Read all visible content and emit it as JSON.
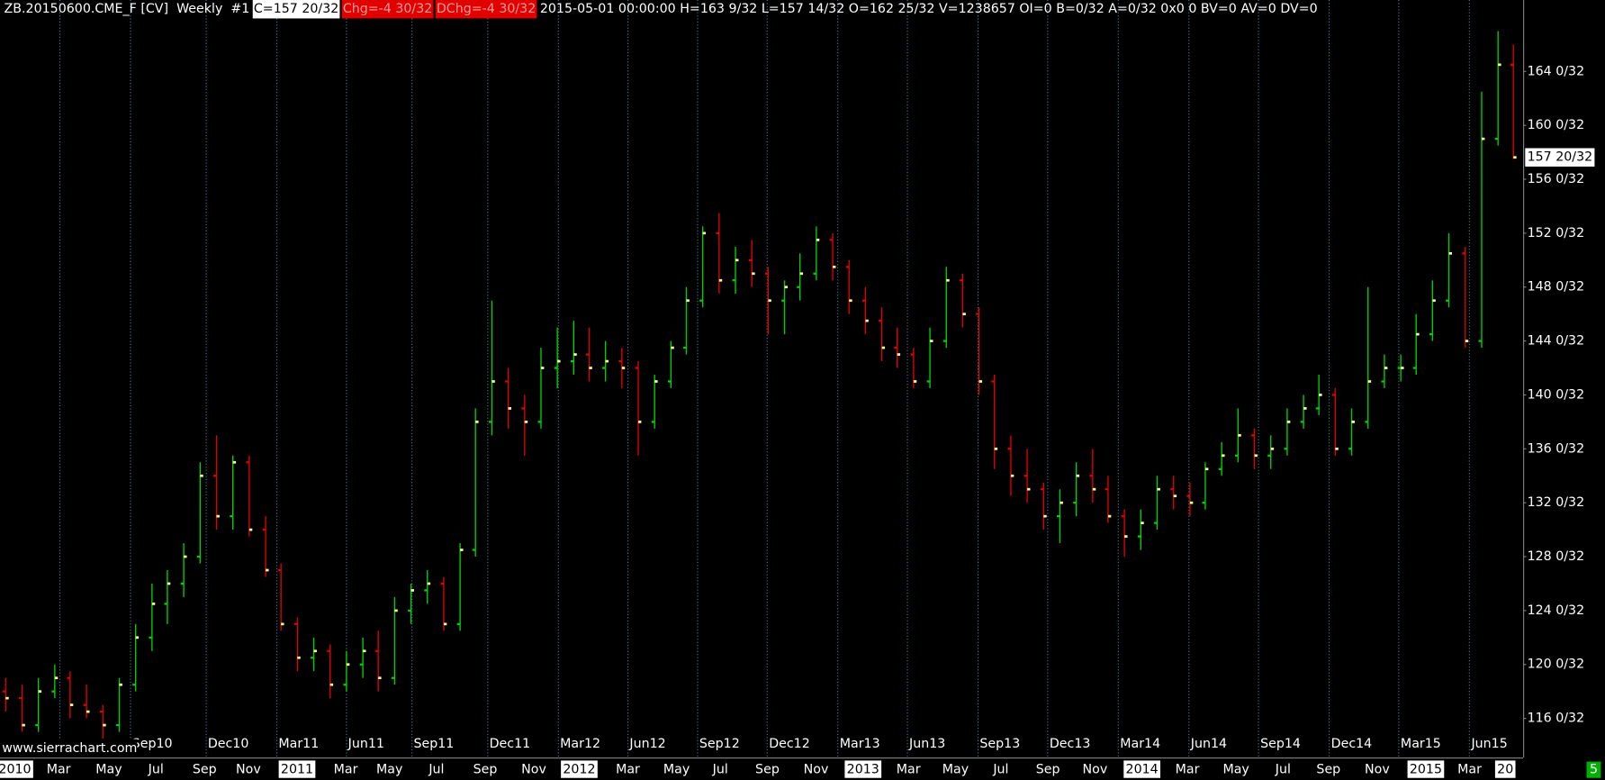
{
  "header": {
    "symbol": "ZB.20150600.CME_F [CV]  Weekly  #1",
    "close": "C=157 20/32",
    "change": "Chg=-4 30/32",
    "dchange": "DChg=-4 30/32",
    "details": "2015-05-01 00:00:00 H=163 9/32 L=157 14/32 O=162 25/32 V=1238657 OI=0 B=0/32 A=0/32 0x0 0 BV=0 AV=0 DV=0"
  },
  "watermark": "www.sierrachart.com",
  "corner_badge": "5",
  "chart_data": {
    "type": "ohlc",
    "xlim": [
      0,
      93.6
    ],
    "ylim": [
      113.1,
      169.3
    ],
    "yticks": [
      {
        "value": 116,
        "label": "116 0/32"
      },
      {
        "value": 120,
        "label": "120 0/32"
      },
      {
        "value": 124,
        "label": "124 0/32"
      },
      {
        "value": 128,
        "label": "128 0/32"
      },
      {
        "value": 132,
        "label": "132 0/32"
      },
      {
        "value": 136,
        "label": "136 0/32"
      },
      {
        "value": 140,
        "label": "140 0/32"
      },
      {
        "value": 144,
        "label": "144 0/32"
      },
      {
        "value": 148,
        "label": "148 0/32"
      },
      {
        "value": 152,
        "label": "152 0/32"
      },
      {
        "value": 156,
        "label": "156 0/32"
      },
      {
        "value": 160,
        "label": "160 0/32"
      },
      {
        "value": 164,
        "label": "164 0/32"
      }
    ],
    "last_price": {
      "value": 157.625,
      "label": "157 20/32"
    },
    "xgrid": [
      3.35,
      7.7,
      12.37,
      16.73,
      21.02,
      25.06,
      29.73,
      34.09,
      38.38,
      42.68,
      46.97,
      51.33,
      55.62,
      59.97,
      64.27,
      68.62,
      72.98,
      77.27,
      81.63,
      85.92,
      90.28
    ],
    "xticks_top": [
      {
        "value": 7.7,
        "label": "Sep10"
      },
      {
        "value": 12.37,
        "label": "Dec10"
      },
      {
        "value": 16.73,
        "label": "Mar11"
      },
      {
        "value": 21.02,
        "label": "Jun11"
      },
      {
        "value": 25.06,
        "label": "Sep11"
      },
      {
        "value": 29.73,
        "label": "Dec11"
      },
      {
        "value": 34.09,
        "label": "Mar12"
      },
      {
        "value": 38.38,
        "label": "Jun12"
      },
      {
        "value": 42.68,
        "label": "Sep12"
      },
      {
        "value": 46.97,
        "label": "Dec12"
      },
      {
        "value": 51.33,
        "label": "Mar13"
      },
      {
        "value": 55.62,
        "label": "Jun13"
      },
      {
        "value": 59.97,
        "label": "Sep13"
      },
      {
        "value": 64.27,
        "label": "Dec13"
      },
      {
        "value": 68.62,
        "label": "Mar14"
      },
      {
        "value": 72.98,
        "label": "Jun14"
      },
      {
        "value": 77.27,
        "label": "Sep14"
      },
      {
        "value": 81.63,
        "label": "Dec14"
      },
      {
        "value": 85.92,
        "label": "Mar15"
      },
      {
        "value": 90.28,
        "label": "Jun15"
      }
    ],
    "xticks": [
      {
        "value": 0.6,
        "label": "2010"
      },
      {
        "value": 3.3,
        "label": "Mar"
      },
      {
        "value": 6.4,
        "label": "May"
      },
      {
        "value": 9.3,
        "label": "Jul"
      },
      {
        "value": 12.3,
        "label": "Sep"
      },
      {
        "value": 15.0,
        "label": "Nov"
      },
      {
        "value": 18.0,
        "label": "2011"
      },
      {
        "value": 21.0,
        "label": "Mar"
      },
      {
        "value": 23.7,
        "label": "May"
      },
      {
        "value": 26.6,
        "label": "Jul"
      },
      {
        "value": 29.6,
        "label": "Sep"
      },
      {
        "value": 32.6,
        "label": "Nov"
      },
      {
        "value": 35.4,
        "label": "2012"
      },
      {
        "value": 38.4,
        "label": "Mar"
      },
      {
        "value": 41.4,
        "label": "May"
      },
      {
        "value": 44.1,
        "label": "Jul"
      },
      {
        "value": 47.0,
        "label": "Sep"
      },
      {
        "value": 50.0,
        "label": "Nov"
      },
      {
        "value": 52.9,
        "label": "2013"
      },
      {
        "value": 55.7,
        "label": "Mar"
      },
      {
        "value": 58.6,
        "label": "May"
      },
      {
        "value": 61.4,
        "label": "Jul"
      },
      {
        "value": 64.3,
        "label": "Sep"
      },
      {
        "value": 67.2,
        "label": "Nov"
      },
      {
        "value": 70.1,
        "label": "2014"
      },
      {
        "value": 72.9,
        "label": "Mar"
      },
      {
        "value": 75.9,
        "label": "May"
      },
      {
        "value": 78.8,
        "label": "Jul"
      },
      {
        "value": 81.6,
        "label": "Sep"
      },
      {
        "value": 84.6,
        "label": "Nov"
      },
      {
        "value": 87.6,
        "label": "2015"
      },
      {
        "value": 90.3,
        "label": "Mar"
      },
      {
        "value": 92.5,
        "label": "20"
      }
    ],
    "up_color": "#00d000",
    "down_color": "#e00000",
    "close_color": "#ffff90",
    "open": [
      118,
      117.5,
      115.5,
      118,
      119,
      117,
      116.5,
      115.5,
      118.5,
      122,
      124.5,
      126,
      128,
      134,
      131,
      135,
      130,
      127,
      123,
      120.5,
      121,
      118.5,
      120,
      121,
      119,
      124,
      125.5,
      126,
      123,
      128.5,
      138,
      141,
      139,
      138,
      142,
      142.5,
      143,
      142,
      142.5,
      142,
      138,
      141,
      143.5,
      147,
      152,
      148.5,
      150,
      149,
      147,
      148,
      149,
      151.5,
      149.5,
      147,
      145.5,
      143.5,
      143,
      141,
      144,
      148.5,
      146,
      141,
      136,
      134,
      133,
      131,
      132,
      134,
      133,
      131,
      129.5,
      130.5,
      133,
      132.5,
      132,
      134.5,
      135.5,
      137,
      135.5,
      136,
      138,
      139,
      140,
      136,
      138,
      141,
      142,
      142,
      144.5,
      147,
      150.5,
      144,
      159,
      164.5
    ],
    "high": [
      119,
      118.5,
      119,
      120,
      119.5,
      118.5,
      117,
      119,
      123,
      126,
      127,
      129,
      135,
      137,
      135.5,
      135.5,
      131,
      127.5,
      123.5,
      122,
      121.5,
      121,
      122,
      122.5,
      125,
      126,
      127,
      126.5,
      129,
      139,
      147,
      142,
      140,
      143.5,
      145,
      145.5,
      145,
      144,
      143.5,
      142.5,
      141.5,
      144,
      148,
      152.5,
      153.5,
      151,
      151.5,
      149.5,
      148.5,
      150.5,
      152.5,
      152,
      150,
      148,
      146.5,
      145,
      143.5,
      145,
      149.5,
      149,
      146.5,
      141.5,
      137,
      136,
      133.5,
      133,
      135,
      136,
      134,
      131.5,
      131.5,
      134,
      134,
      133.5,
      135,
      136.5,
      139,
      137.5,
      137,
      139,
      140,
      141.5,
      140.5,
      139,
      148,
      143,
      143,
      146,
      148.5,
      152,
      151,
      162.5,
      167,
      166
    ],
    "low": [
      116.5,
      115,
      115,
      117.5,
      116,
      116,
      114.5,
      115,
      118,
      121,
      123,
      125,
      127.5,
      130,
      130,
      129.5,
      126.5,
      122.5,
      119.5,
      119.5,
      117.5,
      118,
      119,
      118,
      118.5,
      123,
      124.5,
      122.5,
      122.5,
      128,
      137,
      137.5,
      135.5,
      137.5,
      140.5,
      141.5,
      141,
      141,
      140.5,
      135.5,
      137.5,
      140.5,
      143,
      146.5,
      147.5,
      147.5,
      148,
      144.5,
      144.5,
      147,
      148.5,
      148.5,
      146,
      144.5,
      142.5,
      142,
      140.5,
      140.5,
      143.5,
      145,
      140,
      134.5,
      132.5,
      132,
      130,
      129,
      131,
      132,
      130.5,
      128,
      128.5,
      130,
      131.5,
      131,
      131.5,
      134,
      135,
      134.5,
      134.5,
      135.5,
      137.5,
      138.5,
      135.5,
      135.5,
      137.5,
      140.5,
      141,
      141.5,
      144,
      146.5,
      143.5,
      143.5,
      158.5,
      157.5
    ],
    "close": [
      117.5,
      115.5,
      118,
      119,
      117,
      116.5,
      115.5,
      118.5,
      122,
      124.5,
      126,
      128,
      134,
      131,
      135,
      130,
      127,
      123,
      120.5,
      121,
      118.5,
      120,
      121,
      119,
      124,
      125.5,
      126,
      123,
      128.5,
      138,
      141,
      139,
      138,
      142,
      142.5,
      143,
      142,
      142.5,
      142,
      138,
      141,
      143.5,
      147,
      152,
      148.5,
      150,
      149,
      147,
      148,
      149,
      151.5,
      149.5,
      147,
      145.5,
      143.5,
      143,
      141,
      144,
      148.5,
      146,
      141,
      136,
      134,
      133,
      131,
      132,
      134,
      133,
      131,
      129.5,
      130.5,
      133,
      132.5,
      132,
      134.5,
      135.5,
      137,
      135.5,
      136,
      138,
      139,
      140,
      136,
      138,
      141,
      142,
      142,
      144.5,
      147,
      150.5,
      144,
      159,
      164.5,
      157.625
    ]
  }
}
